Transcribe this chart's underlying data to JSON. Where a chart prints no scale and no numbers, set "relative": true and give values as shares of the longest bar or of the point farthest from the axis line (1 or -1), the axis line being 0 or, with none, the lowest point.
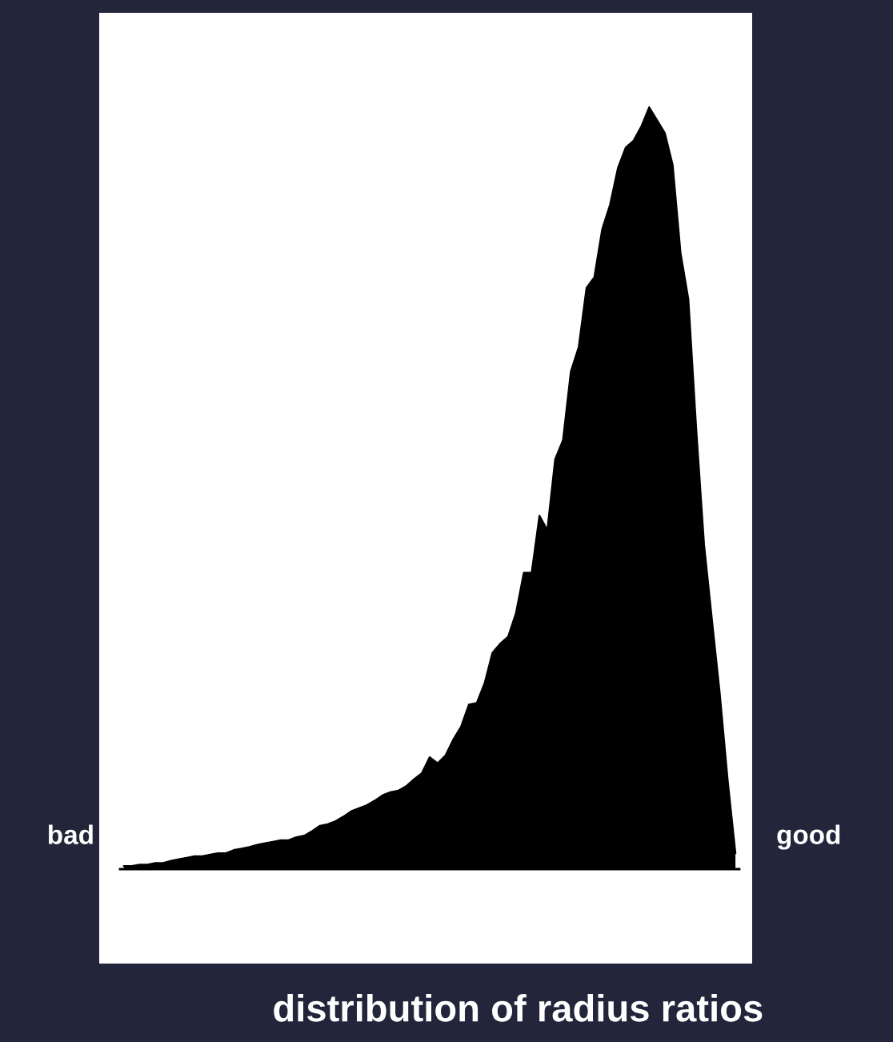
{
  "chart_data": {
    "type": "area",
    "relative": true,
    "xlabel": "distribution of radius ratios",
    "color": "#000000",
    "annotations": [
      "bad",
      "good"
    ],
    "categories": [
      null,
      null,
      null,
      null,
      null,
      null,
      null,
      null,
      null,
      null,
      null,
      null,
      null,
      null,
      null,
      null,
      null,
      null,
      null,
      null,
      null,
      null,
      null,
      null,
      null,
      null,
      null,
      null,
      null,
      null,
      null,
      null,
      null,
      null,
      null,
      null,
      null,
      null,
      null,
      null,
      null,
      null,
      null,
      null,
      null,
      null,
      null,
      null,
      null,
      null,
      null,
      null,
      null,
      null,
      null,
      null,
      null,
      null,
      null,
      null,
      null,
      null,
      null,
      null,
      null,
      null,
      null,
      null,
      null,
      null,
      null,
      null,
      null,
      null,
      null,
      null,
      null,
      null,
      null
    ],
    "values": [
      0.004,
      0.004,
      0.006,
      0.006,
      0.008,
      0.008,
      0.011,
      0.013,
      0.015,
      0.017,
      0.017,
      0.019,
      0.021,
      0.021,
      0.025,
      0.027,
      0.029,
      0.032,
      0.034,
      0.036,
      0.038,
      0.038,
      0.042,
      0.044,
      0.05,
      0.057,
      0.059,
      0.063,
      0.069,
      0.076,
      0.08,
      0.084,
      0.09,
      0.097,
      0.101,
      0.103,
      0.109,
      0.118,
      0.126,
      0.147,
      0.139,
      0.149,
      0.17,
      0.187,
      0.216,
      0.218,
      0.244,
      0.284,
      0.296,
      0.305,
      0.336,
      0.389,
      0.389,
      0.464,
      0.445,
      0.538,
      0.563,
      0.653,
      0.685,
      0.763,
      0.777,
      0.84,
      0.872,
      0.92,
      0.947,
      0.956,
      0.975,
      1,
      0.983,
      0.966,
      0.924,
      0.809,
      0.748,
      0.578,
      0.426,
      0.328,
      0.231,
      0.118,
      0.021
    ],
    "grid": false,
    "legend": false
  }
}
